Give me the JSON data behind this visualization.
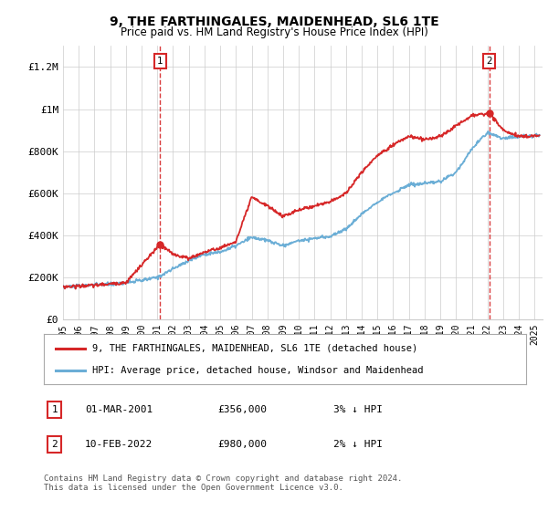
{
  "title": "9, THE FARTHINGALES, MAIDENHEAD, SL6 1TE",
  "subtitle": "Price paid vs. HM Land Registry's House Price Index (HPI)",
  "ylim": [
    0,
    1300000
  ],
  "yticks": [
    0,
    200000,
    400000,
    600000,
    800000,
    1000000,
    1200000
  ],
  "ytick_labels": [
    "£0",
    "£200K",
    "£400K",
    "£600K",
    "£800K",
    "£1M",
    "£1.2M"
  ],
  "sale1_date_num": 2001.17,
  "sale1_price": 356000,
  "sale1_label": "1",
  "sale2_date_num": 2022.12,
  "sale2_price": 980000,
  "sale2_label": "2",
  "line_color_hpi": "#6baed6",
  "line_color_price": "#d62728",
  "annotation_box_color": "#d62728",
  "legend_entries": [
    "9, THE FARTHINGALES, MAIDENHEAD, SL6 1TE (detached house)",
    "HPI: Average price, detached house, Windsor and Maidenhead"
  ],
  "table_rows": [
    [
      "1",
      "01-MAR-2001",
      "£356,000",
      "3% ↓ HPI"
    ],
    [
      "2",
      "10-FEB-2022",
      "£980,000",
      "2% ↓ HPI"
    ]
  ],
  "footnote": "Contains HM Land Registry data © Crown copyright and database right 2024.\nThis data is licensed under the Open Government Licence v3.0.",
  "background_color": "#ffffff",
  "grid_color": "#cccccc",
  "xmin": 1995,
  "xmax": 2025.5,
  "hpi_anchors_x": [
    1995,
    1996,
    1997,
    1998,
    1999,
    2000,
    2001,
    2002,
    2003,
    2004,
    2005,
    2006,
    2007,
    2008,
    2009,
    2010,
    2011,
    2012,
    2013,
    2014,
    2015,
    2016,
    2017,
    2018,
    2019,
    2020,
    2021,
    2022,
    2023,
    2024,
    2025.3
  ],
  "hpi_anchors_y": [
    155000,
    158000,
    165000,
    168000,
    175000,
    185000,
    200000,
    240000,
    280000,
    310000,
    320000,
    350000,
    390000,
    375000,
    350000,
    375000,
    385000,
    395000,
    430000,
    500000,
    560000,
    600000,
    640000,
    645000,
    655000,
    700000,
    810000,
    890000,
    860000,
    870000,
    875000
  ],
  "price_anchors_x": [
    1995,
    1997,
    1999,
    2001.17,
    2002,
    2003,
    2004,
    2005,
    2006,
    2007,
    2008,
    2009,
    2010,
    2011,
    2012,
    2013,
    2014,
    2015,
    2016,
    2017,
    2018,
    2019,
    2020,
    2021,
    2022.12,
    2023,
    2024,
    2025.3
  ],
  "price_anchors_y": [
    155000,
    162000,
    175000,
    356000,
    310000,
    290000,
    320000,
    340000,
    370000,
    580000,
    540000,
    490000,
    520000,
    540000,
    560000,
    600000,
    700000,
    780000,
    830000,
    870000,
    855000,
    870000,
    920000,
    970000,
    980000,
    900000,
    870000,
    875000
  ]
}
